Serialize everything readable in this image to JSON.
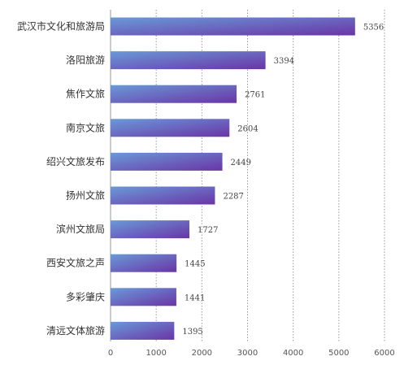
{
  "chart_data": {
    "type": "bar",
    "orientation": "horizontal",
    "categories": [
      "武汉市文化和旅游局",
      "洛阳旅游",
      "焦作文旅",
      "南京文旅",
      "绍兴文旅发布",
      "扬州文旅",
      "滨州文旅局",
      "西安文旅之声",
      "多彩肇庆",
      "清远文体旅游"
    ],
    "values": [
      5356,
      3394,
      2761,
      2604,
      2449,
      2287,
      1727,
      1445,
      1441,
      1395
    ],
    "value_labels": [
      "5356",
      "3394",
      "2761",
      "2604",
      "2449",
      "2287",
      "1727",
      "1445",
      "1441",
      "1395"
    ],
    "x_ticks": [
      0,
      1000,
      2000,
      3000,
      4000,
      5000,
      6000
    ],
    "x_tick_labels": [
      "0",
      "1000",
      "2000",
      "3000",
      "4000",
      "5000",
      "6000"
    ],
    "xlim": [
      0,
      6000
    ],
    "grid": "vertical dotted",
    "legend": "none",
    "colors": {
      "bar_start": "#6a9ad8",
      "bar_end": "#6a34a6",
      "grid": "#9a9a9a",
      "axis": "#999999",
      "text": "#333333"
    }
  }
}
